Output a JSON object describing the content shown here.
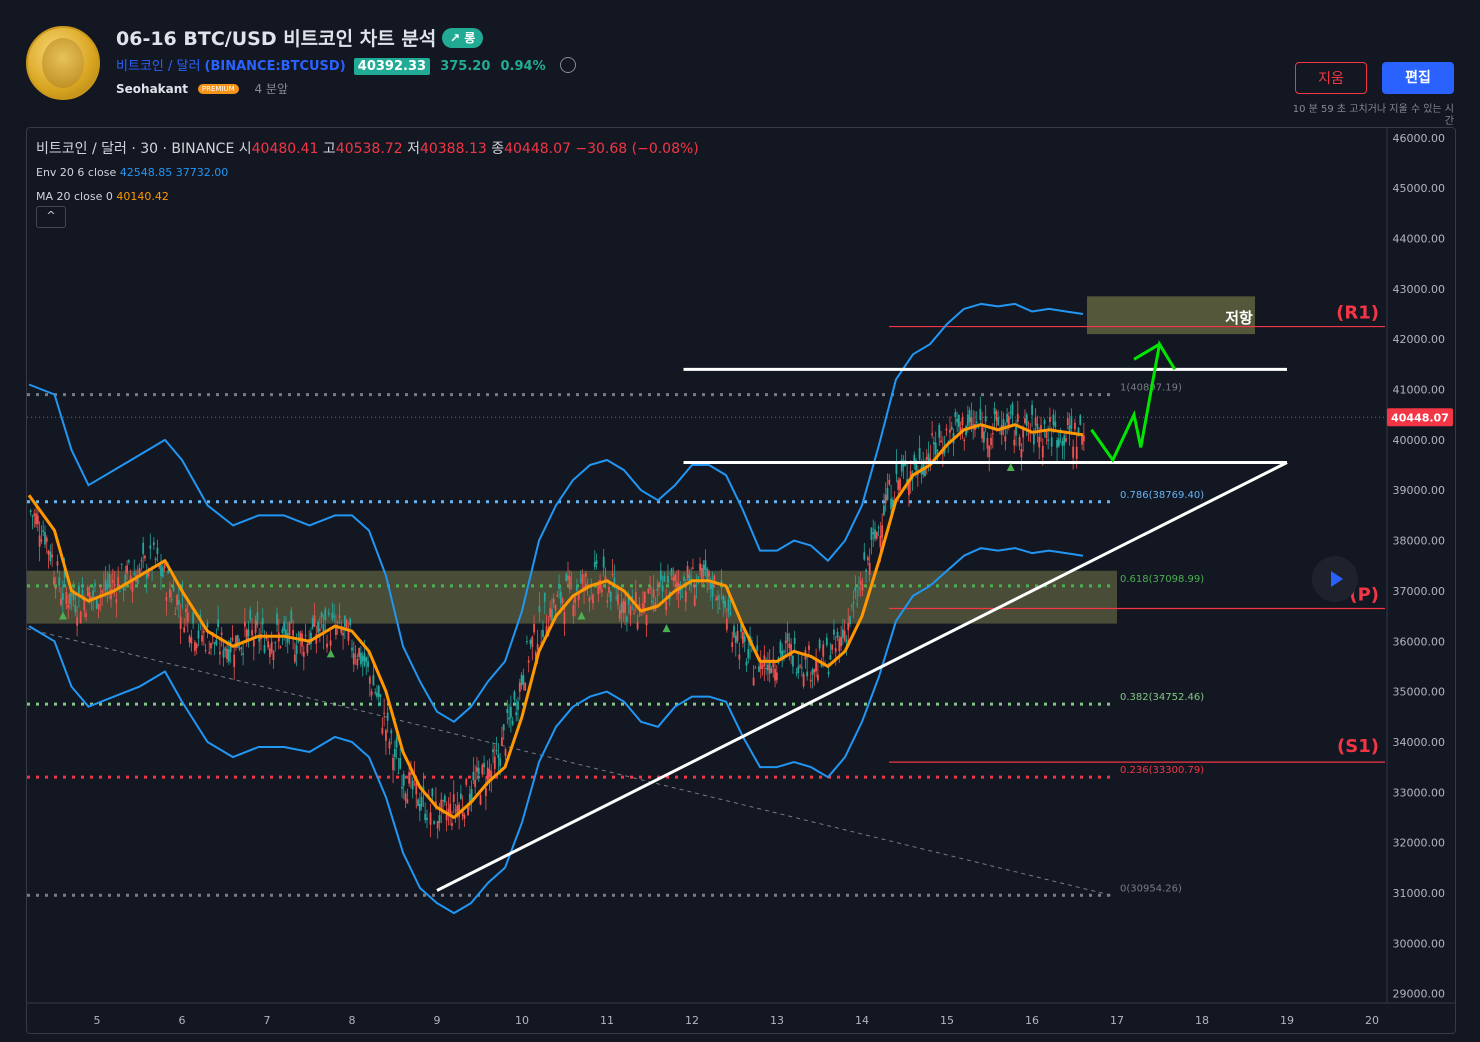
{
  "idea": {
    "title": "06-16 BTC/USD 비트코인 차트 분석",
    "direction_badge": "↗ 롱",
    "symbol_name": "비트코인 / 달러",
    "symbol_code": "(BINANCE:BTCUSD)",
    "price": "40392.33",
    "change": "375.20",
    "change_pct": "0.94%",
    "author": "Seohakant",
    "author_badge": "PREMIUM",
    "time_ago": "4 분앞",
    "delete_label": "지움",
    "edit_label": "편집",
    "edit_note": "10 분 59 초 고치거나 지울 수 있는 시간"
  },
  "legend": {
    "symbol": "비트코인 / 달러 · 30 · BINANCE",
    "open_label": "시",
    "open": "40480.41",
    "high_label": "고",
    "high": "40538.72",
    "low_label": "저",
    "low": "40388.13",
    "close_label": "종",
    "close": "40448.07",
    "change": "−30.68 (−0.08%)",
    "env_label": "Env 20 6 close",
    "env_upper": "42548.85",
    "env_lower": "37732.00",
    "ma_label": "MA 20 close 0",
    "ma_value": "40140.42",
    "collapse_icon": "^"
  },
  "colors": {
    "background": "#131722",
    "up": "#26a69a",
    "down": "#ef5350",
    "envelope": "#2196f3",
    "ma": "#ff9800",
    "price_tag": "#f23645",
    "projection": "#00e600",
    "zone": "#8b8d4f"
  },
  "chart_data": {
    "type": "candlestick",
    "timeframe": "30",
    "x_ticks": [
      "5",
      "6",
      "7",
      "8",
      "9",
      "10",
      "11",
      "12",
      "13",
      "14",
      "15",
      "16",
      "17",
      "18",
      "19",
      "20"
    ],
    "y_ticks": [
      "29000.00",
      "30000.00",
      "31000.00",
      "32000.00",
      "33000.00",
      "34000.00",
      "35000.00",
      "36000.00",
      "37000.00",
      "38000.00",
      "39000.00",
      "40000.00",
      "41000.00",
      "42000.00",
      "43000.00",
      "44000.00",
      "45000.00",
      "46000.00"
    ],
    "ylim": [
      28700,
      46200
    ],
    "xlim": [
      4.2,
      20.1
    ],
    "last_price": "40448.07",
    "ma_20": [
      [
        4.2,
        38900
      ],
      [
        4.5,
        38200
      ],
      [
        4.7,
        37000
      ],
      [
        4.9,
        36800
      ],
      [
        5.2,
        37000
      ],
      [
        5.5,
        37300
      ],
      [
        5.8,
        37600
      ],
      [
        6.0,
        37000
      ],
      [
        6.3,
        36200
      ],
      [
        6.6,
        35900
      ],
      [
        6.9,
        36100
      ],
      [
        7.2,
        36100
      ],
      [
        7.5,
        36000
      ],
      [
        7.8,
        36300
      ],
      [
        8.0,
        36200
      ],
      [
        8.2,
        35800
      ],
      [
        8.4,
        35000
      ],
      [
        8.6,
        33800
      ],
      [
        8.8,
        33100
      ],
      [
        9.0,
        32700
      ],
      [
        9.2,
        32500
      ],
      [
        9.4,
        32800
      ],
      [
        9.6,
        33200
      ],
      [
        9.8,
        33500
      ],
      [
        10.0,
        34500
      ],
      [
        10.2,
        35800
      ],
      [
        10.4,
        36500
      ],
      [
        10.6,
        36900
      ],
      [
        10.8,
        37100
      ],
      [
        11.0,
        37200
      ],
      [
        11.2,
        37000
      ],
      [
        11.4,
        36600
      ],
      [
        11.6,
        36700
      ],
      [
        11.8,
        37000
      ],
      [
        12.0,
        37200
      ],
      [
        12.2,
        37200
      ],
      [
        12.4,
        37100
      ],
      [
        12.6,
        36300
      ],
      [
        12.8,
        35600
      ],
      [
        13.0,
        35600
      ],
      [
        13.2,
        35800
      ],
      [
        13.4,
        35700
      ],
      [
        13.6,
        35500
      ],
      [
        13.8,
        35800
      ],
      [
        14.0,
        36500
      ],
      [
        14.2,
        37600
      ],
      [
        14.4,
        38800
      ],
      [
        14.6,
        39300
      ],
      [
        14.8,
        39500
      ],
      [
        15.0,
        39900
      ],
      [
        15.2,
        40200
      ],
      [
        15.4,
        40300
      ],
      [
        15.6,
        40200
      ],
      [
        15.8,
        40300
      ],
      [
        16.0,
        40150
      ],
      [
        16.2,
        40200
      ],
      [
        16.4,
        40150
      ],
      [
        16.6,
        40100
      ]
    ],
    "env_upper": [
      [
        4.2,
        41100
      ],
      [
        4.5,
        40900
      ],
      [
        4.7,
        39800
      ],
      [
        4.9,
        39100
      ],
      [
        5.2,
        39400
      ],
      [
        5.5,
        39700
      ],
      [
        5.8,
        40000
      ],
      [
        6.0,
        39600
      ],
      [
        6.3,
        38700
      ],
      [
        6.6,
        38300
      ],
      [
        6.9,
        38500
      ],
      [
        7.2,
        38500
      ],
      [
        7.5,
        38300
      ],
      [
        7.8,
        38500
      ],
      [
        8.0,
        38500
      ],
      [
        8.2,
        38200
      ],
      [
        8.4,
        37300
      ],
      [
        8.6,
        35900
      ],
      [
        8.8,
        35200
      ],
      [
        9.0,
        34600
      ],
      [
        9.2,
        34400
      ],
      [
        9.4,
        34700
      ],
      [
        9.6,
        35200
      ],
      [
        9.8,
        35600
      ],
      [
        10.0,
        36600
      ],
      [
        10.2,
        38000
      ],
      [
        10.4,
        38700
      ],
      [
        10.6,
        39200
      ],
      [
        10.8,
        39500
      ],
      [
        11.0,
        39600
      ],
      [
        11.2,
        39400
      ],
      [
        11.4,
        39000
      ],
      [
        11.6,
        38800
      ],
      [
        11.8,
        39100
      ],
      [
        12.0,
        39500
      ],
      [
        12.2,
        39500
      ],
      [
        12.4,
        39300
      ],
      [
        12.6,
        38600
      ],
      [
        12.8,
        37800
      ],
      [
        13.0,
        37800
      ],
      [
        13.2,
        38000
      ],
      [
        13.4,
        37900
      ],
      [
        13.6,
        37600
      ],
      [
        13.8,
        38000
      ],
      [
        14.0,
        38700
      ],
      [
        14.2,
        39900
      ],
      [
        14.4,
        41200
      ],
      [
        14.6,
        41700
      ],
      [
        14.8,
        41900
      ],
      [
        15.0,
        42300
      ],
      [
        15.2,
        42600
      ],
      [
        15.4,
        42700
      ],
      [
        15.6,
        42650
      ],
      [
        15.8,
        42700
      ],
      [
        16.0,
        42550
      ],
      [
        16.2,
        42600
      ],
      [
        16.4,
        42550
      ],
      [
        16.6,
        42500
      ]
    ],
    "env_lower": [
      [
        4.2,
        36300
      ],
      [
        4.5,
        36000
      ],
      [
        4.7,
        35100
      ],
      [
        4.9,
        34700
      ],
      [
        5.2,
        34900
      ],
      [
        5.5,
        35100
      ],
      [
        5.8,
        35400
      ],
      [
        6.0,
        34800
      ],
      [
        6.3,
        34000
      ],
      [
        6.6,
        33700
      ],
      [
        6.9,
        33900
      ],
      [
        7.2,
        33900
      ],
      [
        7.5,
        33800
      ],
      [
        7.8,
        34100
      ],
      [
        8.0,
        34000
      ],
      [
        8.2,
        33700
      ],
      [
        8.4,
        32900
      ],
      [
        8.6,
        31800
      ],
      [
        8.8,
        31100
      ],
      [
        9.0,
        30800
      ],
      [
        9.2,
        30600
      ],
      [
        9.4,
        30800
      ],
      [
        9.6,
        31200
      ],
      [
        9.8,
        31500
      ],
      [
        10.0,
        32400
      ],
      [
        10.2,
        33600
      ],
      [
        10.4,
        34300
      ],
      [
        10.6,
        34700
      ],
      [
        10.8,
        34900
      ],
      [
        11.0,
        35000
      ],
      [
        11.2,
        34800
      ],
      [
        11.4,
        34400
      ],
      [
        11.6,
        34300
      ],
      [
        11.8,
        34700
      ],
      [
        12.0,
        34900
      ],
      [
        12.2,
        34900
      ],
      [
        12.4,
        34800
      ],
      [
        12.6,
        34100
      ],
      [
        12.8,
        33500
      ],
      [
        13.0,
        33500
      ],
      [
        13.2,
        33600
      ],
      [
        13.4,
        33500
      ],
      [
        13.6,
        33300
      ],
      [
        13.8,
        33700
      ],
      [
        14.0,
        34400
      ],
      [
        14.2,
        35300
      ],
      [
        14.4,
        36400
      ],
      [
        14.6,
        36900
      ],
      [
        14.8,
        37100
      ],
      [
        15.0,
        37400
      ],
      [
        15.2,
        37700
      ],
      [
        15.4,
        37850
      ],
      [
        15.6,
        37800
      ],
      [
        15.8,
        37850
      ],
      [
        16.0,
        37750
      ],
      [
        16.2,
        37800
      ],
      [
        16.4,
        37750
      ],
      [
        16.6,
        37700
      ]
    ],
    "fib_levels": [
      {
        "ratio": "1",
        "label": "1(40897.19)",
        "value": 40897.19,
        "color": "#787b86"
      },
      {
        "ratio": "0.786",
        "label": "0.786(38769.40)",
        "value": 38769.4,
        "color": "#64b5f6"
      },
      {
        "ratio": "0.618",
        "label": "0.618(37098.99)",
        "value": 37098.99,
        "color": "#4caf50"
      },
      {
        "ratio": "0.382",
        "label": "0.382(34752.46)",
        "value": 34752.46,
        "color": "#81c784"
      },
      {
        "ratio": "0.236",
        "label": "0.236(33300.79)",
        "value": 33300.79,
        "color": "#f23645"
      },
      {
        "ratio": "0",
        "label": "0(30954.26)",
        "value": 30954.26,
        "color": "#787b86"
      }
    ],
    "annotations": {
      "resistance_label": "저항",
      "r1_label": "(R1)",
      "s1_label": "(S1)",
      "p_label": "(P)",
      "r1_value": 42250,
      "p_value": 36650,
      "s1_value": 33600
    }
  }
}
